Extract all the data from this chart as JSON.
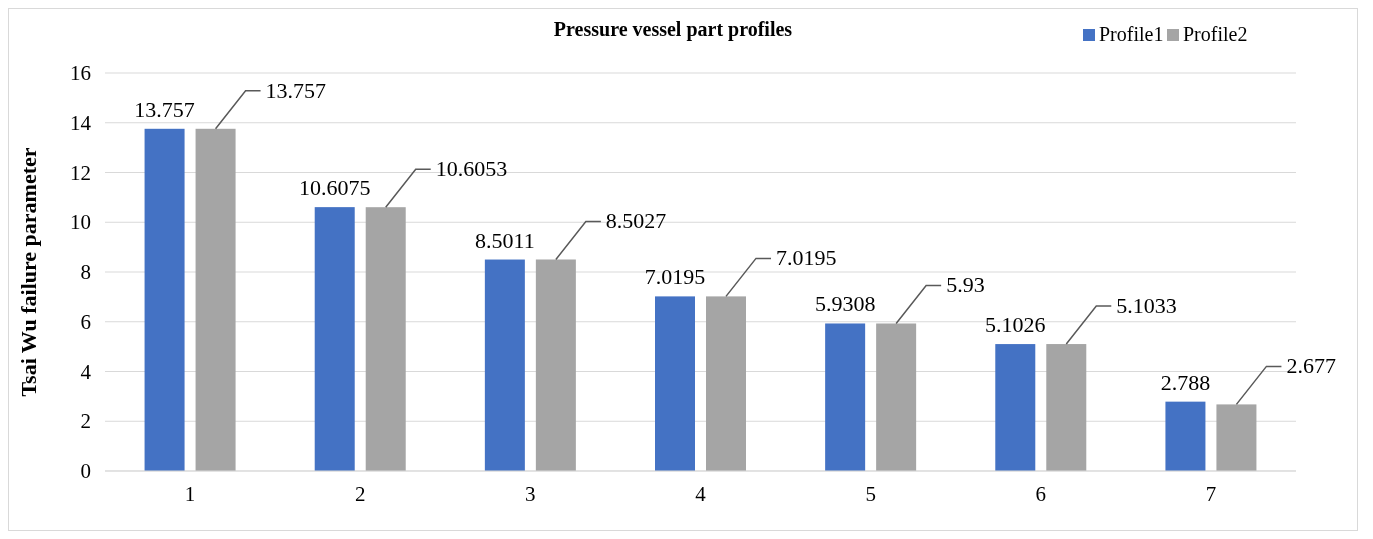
{
  "chart_data": {
    "type": "bar",
    "title": "Pressure vessel part profiles",
    "ylabel": "Tsai Wu failure parameter",
    "categories": [
      "1",
      "2",
      "3",
      "4",
      "5",
      "6",
      "7"
    ],
    "series": [
      {
        "name": "Profile1",
        "color": "#4472c4",
        "values": [
          13.757,
          10.6075,
          8.5011,
          7.0195,
          5.9308,
          5.1026,
          2.788
        ]
      },
      {
        "name": "Profile2",
        "color": "#a5a5a5",
        "values": [
          13.757,
          10.6053,
          8.5027,
          7.0195,
          5.93,
          5.1033,
          2.677
        ]
      }
    ],
    "ylim": [
      0,
      16
    ],
    "yticks": [
      0,
      2,
      4,
      6,
      8,
      10,
      12,
      14,
      16
    ],
    "grid": "y",
    "legend": "top right",
    "data_labels": true
  }
}
